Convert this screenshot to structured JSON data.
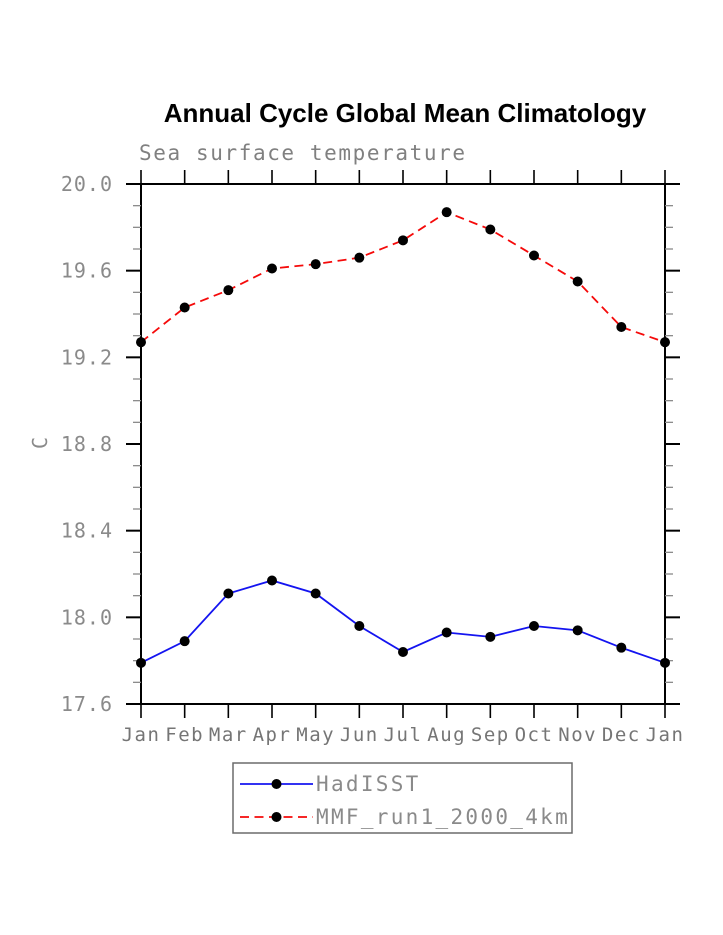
{
  "page": {
    "background": "#ffffff"
  },
  "chart_data": {
    "type": "line",
    "title": "Annual Cycle Global Mean Climatology",
    "subtitle": "Sea surface temperature",
    "ylabel": "C",
    "xlabel": "",
    "x_tick_labels": [
      "Jan",
      "Feb",
      "Mar",
      "Apr",
      "May",
      "Jun",
      "Jul",
      "Aug",
      "Sep",
      "Oct",
      "Nov",
      "Dec",
      "Jan"
    ],
    "y_tick_labels": [
      "17.6",
      "18.0",
      "18.4",
      "18.8",
      "19.2",
      "19.6",
      "20.0"
    ],
    "y_ticks": [
      17.6,
      18.0,
      18.4,
      18.8,
      19.2,
      19.6,
      20.0
    ],
    "y_minor_step": 0.1,
    "ylim": [
      17.6,
      20.0
    ],
    "grid": false,
    "legend_position": "bottom",
    "frame_color": "#000000",
    "minor_tick_color": "#8a8a8a",
    "marker_color": "#000000",
    "series": [
      {
        "name": "HadISST",
        "color": "#1414f0",
        "style": "solid",
        "marker": "filled-circle",
        "values": [
          17.79,
          17.89,
          18.11,
          18.17,
          18.11,
          17.96,
          17.84,
          17.93,
          17.91,
          17.96,
          17.94,
          17.86,
          17.79
        ]
      },
      {
        "name": "MMF_run1_2000_4km",
        "color": "#f50a0a",
        "style": "dashed",
        "marker": "filled-circle",
        "values": [
          19.27,
          19.43,
          19.51,
          19.61,
          19.63,
          19.66,
          19.74,
          19.87,
          19.79,
          19.67,
          19.55,
          19.34,
          19.27
        ]
      }
    ]
  }
}
